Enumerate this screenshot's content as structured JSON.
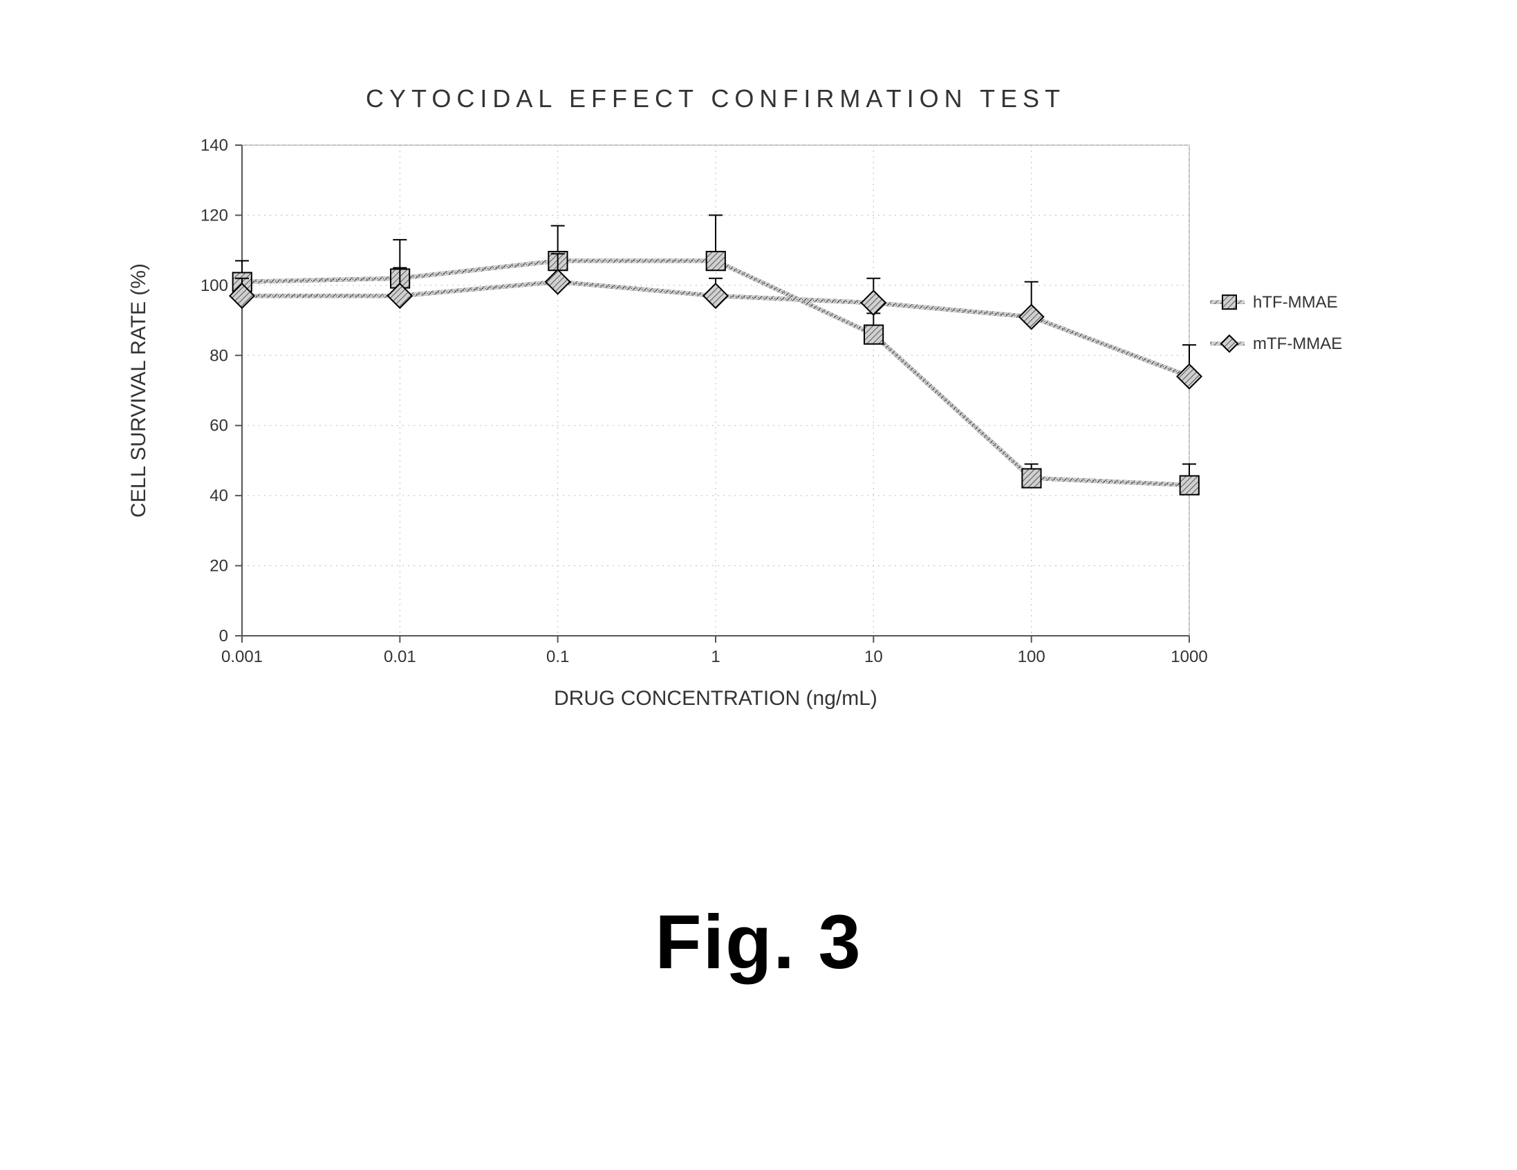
{
  "figure_caption": "Fig. 3",
  "chart": {
    "type": "line",
    "title": "CYTOCIDAL EFFECT CONFIRMATION TEST",
    "title_fontsize": 36,
    "title_font_family": "Courier New, monospace",
    "title_color": "#333333",
    "title_letter_spacing": 8,
    "xlabel": "DRUG CONCENTRATION (ng/mL)",
    "ylabel": "CELL SURVIVAL RATE (%)",
    "label_fontsize": 30,
    "label_font_family": "Courier New, monospace",
    "label_color": "#333333",
    "axis_tick_fontsize": 24,
    "background_color": "#ffffff",
    "plot_area_border_color": "#888888",
    "grid_color": "#bbbbbb",
    "grid_dash": "2 6",
    "axis_line_color": "#555555",
    "x_scale": "log",
    "xlim": [
      0.001,
      1000
    ],
    "x_ticks": [
      0.001,
      0.01,
      0.1,
      1,
      10,
      100,
      1000
    ],
    "x_tick_labels": [
      "0.001",
      "0.01",
      "0.1",
      "1",
      "10",
      "100",
      "1000"
    ],
    "y_scale": "linear",
    "ylim": [
      0,
      140
    ],
    "y_ticks": [
      0,
      20,
      40,
      60,
      80,
      100,
      120,
      140
    ],
    "line_width": 3,
    "line_style_outer_color": "#000000",
    "line_style_inner_pattern": "hatched",
    "marker_style": "square-hatched",
    "marker_size": 16,
    "legend": {
      "position": "right",
      "fontsize": 24,
      "text_color": "#333333",
      "items": [
        {
          "label": "hTF-MMAE",
          "series_key": "hTF"
        },
        {
          "label": "mTF-MMAE",
          "series_key": "mTF"
        }
      ]
    },
    "series": {
      "hTF": {
        "x": [
          0.001,
          0.01,
          0.1,
          1,
          10,
          100,
          1000
        ],
        "y": [
          101,
          102,
          107,
          107,
          86,
          45,
          43
        ],
        "err_up": [
          6,
          11,
          10,
          13,
          6,
          4,
          6
        ],
        "stroke": "#666666",
        "marker_fill": "#888888"
      },
      "mTF": {
        "x": [
          0.001,
          0.01,
          0.1,
          1,
          10,
          100,
          1000
        ],
        "y": [
          97,
          97,
          101,
          97,
          95,
          91,
          74
        ],
        "err_up": [
          5,
          8,
          8,
          5,
          7,
          10,
          9
        ],
        "stroke": "#666666",
        "marker_fill": "#888888"
      }
    }
  }
}
